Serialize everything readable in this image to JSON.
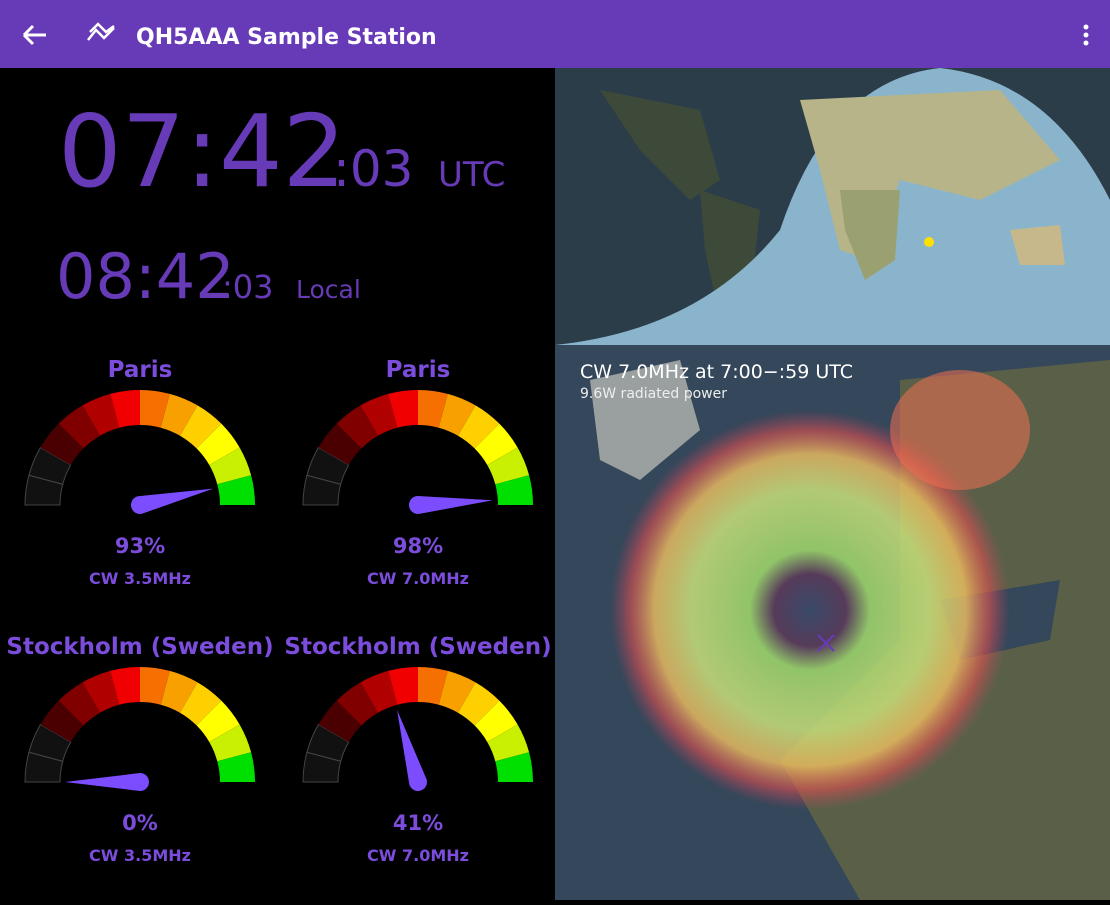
{
  "app_bar": {
    "title": "QH5AAA Sample Station"
  },
  "clock": {
    "utc": {
      "hours_minutes": "07:42",
      "seconds": ":03",
      "zone": "UTC"
    },
    "local": {
      "hours_minutes": "08:42",
      "seconds": ":03",
      "zone": "Local"
    }
  },
  "gauges": [
    {
      "location": "Paris",
      "value": 93,
      "value_label": "93%",
      "band": "CW 3.5MHz"
    },
    {
      "location": "Paris",
      "value": 98,
      "value_label": "98%",
      "band": "CW 7.0MHz"
    },
    {
      "location": "Stockholm (Sweden)",
      "value": 0,
      "value_label": "0%",
      "band": "CW 3.5MHz"
    },
    {
      "location": "Stockholm (Sweden)",
      "value": 41,
      "value_label": "41%",
      "band": "CW 7.0MHz"
    }
  ],
  "propagation_map": {
    "title": "CW 7.0MHz at 7:00−:59 UTC",
    "subtitle": "9.6W radiated power"
  }
}
